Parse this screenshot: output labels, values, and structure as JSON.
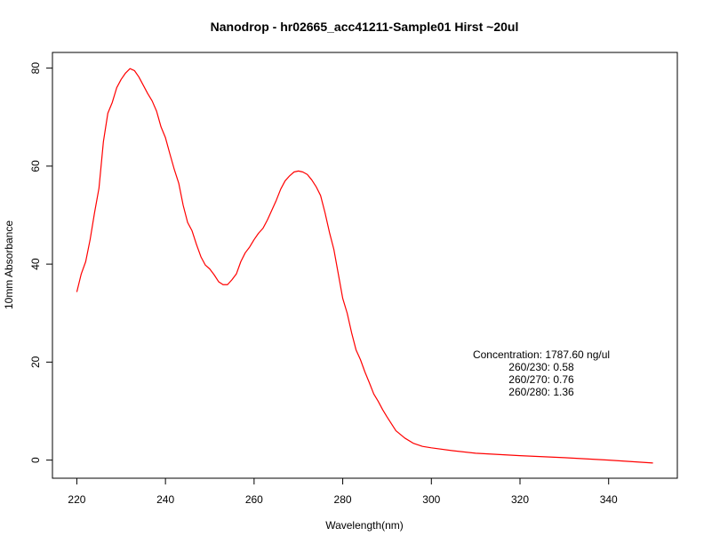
{
  "chart_data": {
    "type": "line",
    "title": "Nanodrop - hr02665_acc41211-Sample01 Hirst ~20ul",
    "xlabel": "Wavelength(nm)",
    "ylabel": "10mm Absorbance",
    "xlim": [
      214.5,
      355.5
    ],
    "ylim": [
      -3.7,
      83.2
    ],
    "x_ticks": [
      220,
      240,
      260,
      280,
      300,
      320,
      340
    ],
    "y_ticks": [
      0,
      20,
      40,
      60,
      80
    ],
    "grid": false,
    "legend": "none",
    "series": [
      {
        "color": "#ff0000",
        "x": [
          220,
          221,
          222,
          223,
          224,
          225,
          226,
          227,
          228,
          229,
          230,
          231,
          232,
          233,
          234,
          235,
          236,
          237,
          238,
          239,
          240,
          241,
          242,
          243,
          244,
          245,
          246,
          247,
          248,
          249,
          250,
          251,
          252,
          253,
          254,
          255,
          256,
          257,
          258,
          259,
          260,
          261,
          262,
          263,
          264,
          265,
          266,
          267,
          268,
          269,
          270,
          271,
          272,
          273,
          274,
          275,
          276,
          277,
          278,
          279,
          280,
          281,
          282,
          283,
          284,
          285,
          286,
          287,
          288,
          289,
          290,
          292,
          294,
          296,
          298,
          300,
          305,
          310,
          320,
          330,
          340,
          350
        ],
        "y": [
          34.3,
          38.0,
          40.5,
          45.0,
          50.5,
          55.5,
          65.0,
          70.8,
          73.0,
          76.0,
          77.7,
          79.0,
          79.9,
          79.5,
          78.2,
          76.5,
          74.8,
          73.3,
          71.2,
          68.0,
          65.8,
          62.5,
          59.3,
          56.5,
          52.0,
          48.5,
          46.8,
          44.0,
          41.5,
          39.8,
          39.0,
          37.8,
          36.4,
          35.8,
          35.8,
          36.8,
          38.0,
          40.5,
          42.3,
          43.5,
          45.0,
          46.3,
          47.3,
          49.0,
          51.0,
          53.0,
          55.3,
          57.0,
          58.0,
          58.8,
          59.0,
          58.8,
          58.3,
          57.2,
          55.8,
          54.0,
          50.5,
          46.5,
          43.0,
          38.0,
          33.0,
          30.0,
          26.0,
          22.5,
          20.5,
          18.0,
          15.8,
          13.5,
          12.0,
          10.3,
          8.8,
          6.0,
          4.5,
          3.4,
          2.8,
          2.5,
          1.9,
          1.4,
          0.9,
          0.5,
          0.0,
          -0.6
        ]
      }
    ],
    "annotation": {
      "lines": [
        "Concentration: 1787.60 ng/ul",
        "260/230: 0.58",
        "260/270: 0.76",
        "260/280: 1.36"
      ]
    }
  }
}
